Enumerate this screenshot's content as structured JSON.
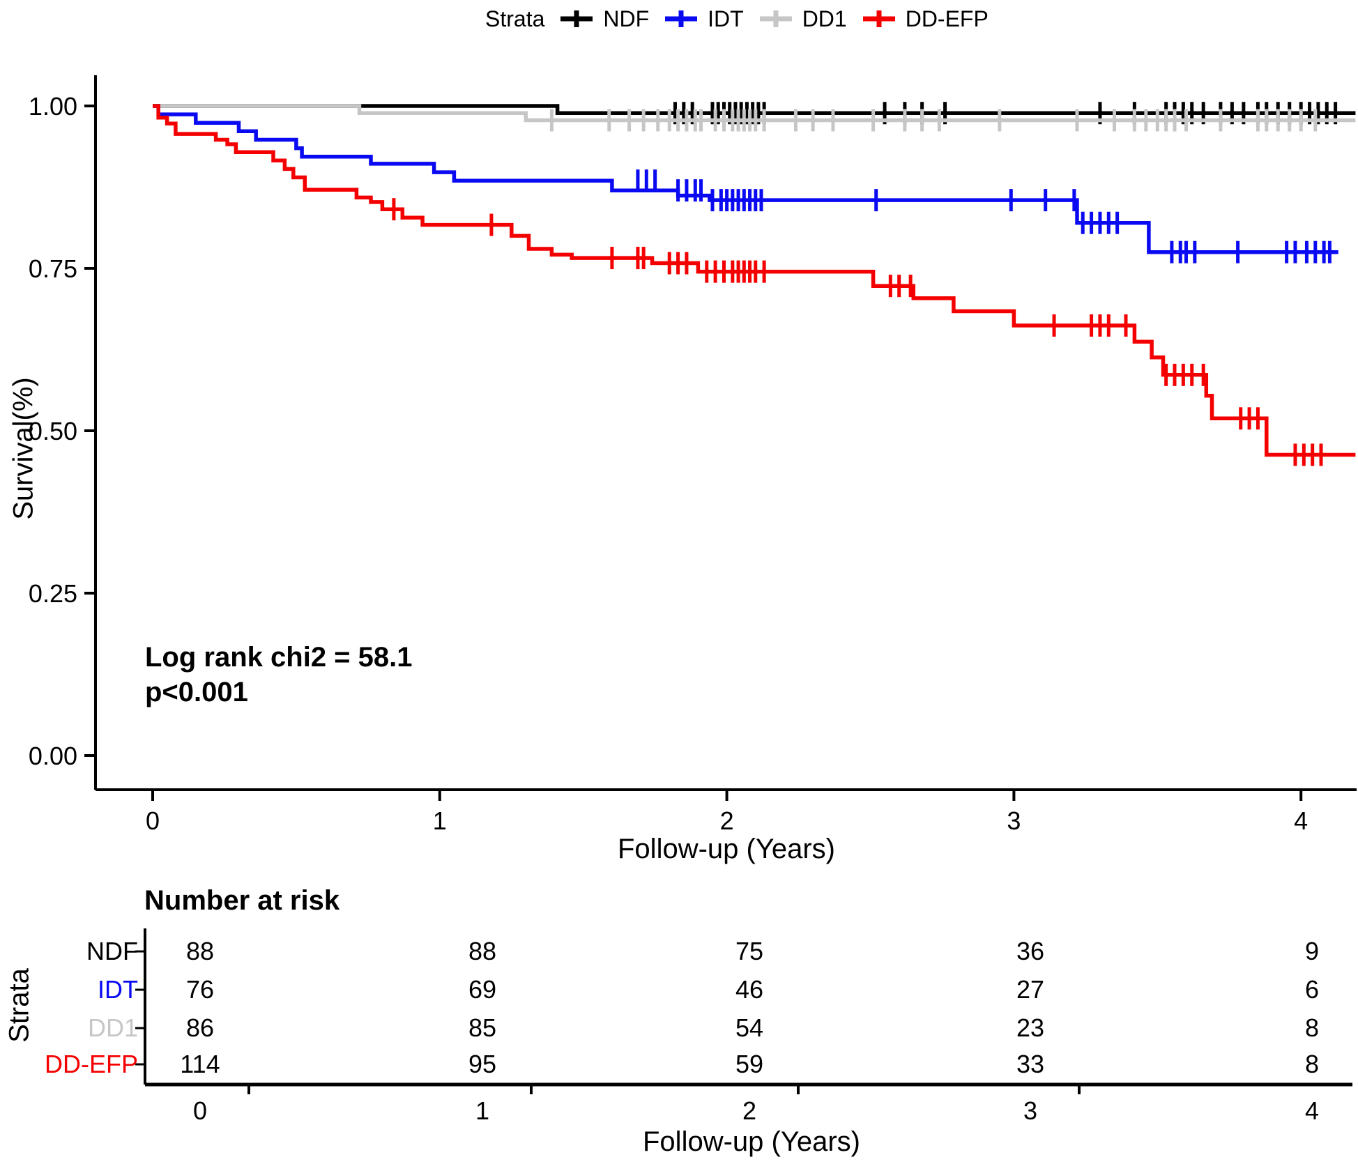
{
  "legend": {
    "title": "Strata",
    "items": [
      {
        "label": "NDF",
        "color": "#000000"
      },
      {
        "label": "IDT",
        "color": "#0a0af2"
      },
      {
        "label": "DD1",
        "color": "#c6c6c6"
      },
      {
        "label": "DD-EFP",
        "color": "#f40000"
      }
    ]
  },
  "axes": {
    "y_label": "Survival(%)",
    "x_label": "Follow-up (Years)",
    "y_ticks": [
      {
        "value": 1.0,
        "label": "1.00"
      },
      {
        "value": 0.75,
        "label": "0.75"
      },
      {
        "value": 0.5,
        "label": "0.50"
      },
      {
        "value": 0.25,
        "label": "0.25"
      },
      {
        "value": 0.0,
        "label": "0.00"
      }
    ],
    "x_ticks": [
      {
        "value": 0,
        "label": "0"
      },
      {
        "value": 1,
        "label": "1"
      },
      {
        "value": 2,
        "label": "2"
      },
      {
        "value": 3,
        "label": "3"
      },
      {
        "value": 4,
        "label": "4"
      }
    ]
  },
  "annotation": {
    "line1": "Log rank chi2 = 58.1",
    "line2": "p<0.001"
  },
  "risk_table": {
    "title": "Number at risk",
    "axis_label": "Strata",
    "x_label": "Follow-up (Years)",
    "x_ticks": [
      "0",
      "1",
      "2",
      "3",
      "4"
    ],
    "rows": [
      {
        "label": "NDF",
        "color": "#000000",
        "values": [
          "88",
          "88",
          "75",
          "36",
          "9"
        ]
      },
      {
        "label": "IDT",
        "color": "#0a0af2",
        "values": [
          "76",
          "69",
          "46",
          "27",
          "6"
        ]
      },
      {
        "label": "DD1",
        "color": "#c6c6c6",
        "values": [
          "86",
          "85",
          "54",
          "23",
          "8"
        ]
      },
      {
        "label": "DD-EFP",
        "color": "#f40000",
        "values": [
          "114",
          "95",
          "59",
          "33",
          "8"
        ]
      }
    ]
  },
  "chart_data": {
    "type": "line",
    "subtype": "kaplan-meier-step",
    "title": "",
    "xlabel": "Follow-up (Years)",
    "ylabel": "Survival(%)",
    "xlim": [
      -0.2,
      4.2
    ],
    "ylim": [
      -0.05,
      1.05
    ],
    "grid": false,
    "legend_position": "top",
    "annotation": "Log rank chi2 = 58.1; p<0.001",
    "series": [
      {
        "name": "NDF",
        "color": "#000000",
        "steps": [
          [
            0,
            1.0
          ],
          [
            1.41,
            0.989
          ],
          [
            4.19,
            0.989
          ]
        ],
        "censors": [
          [
            1.82,
            0.989
          ],
          [
            1.85,
            0.989
          ],
          [
            1.88,
            0.989
          ],
          [
            1.95,
            0.989
          ],
          [
            1.97,
            0.989
          ],
          [
            1.99,
            0.989
          ],
          [
            2.01,
            0.989
          ],
          [
            2.03,
            0.989
          ],
          [
            2.05,
            0.989
          ],
          [
            2.07,
            0.989
          ],
          [
            2.09,
            0.989
          ],
          [
            2.11,
            0.989
          ],
          [
            2.13,
            0.989
          ],
          [
            2.55,
            0.989
          ],
          [
            2.62,
            0.989
          ],
          [
            2.68,
            0.989
          ],
          [
            2.76,
            0.989
          ],
          [
            3.3,
            0.989
          ],
          [
            3.42,
            0.989
          ],
          [
            3.53,
            0.989
          ],
          [
            3.56,
            0.989
          ],
          [
            3.59,
            0.989
          ],
          [
            3.62,
            0.989
          ],
          [
            3.66,
            0.989
          ],
          [
            3.72,
            0.989
          ],
          [
            3.76,
            0.989
          ],
          [
            3.8,
            0.989
          ],
          [
            3.85,
            0.989
          ],
          [
            3.88,
            0.989
          ],
          [
            3.92,
            0.989
          ],
          [
            3.96,
            0.989
          ],
          [
            4.0,
            0.989
          ],
          [
            4.03,
            0.989
          ],
          [
            4.06,
            0.989
          ],
          [
            4.09,
            0.989
          ],
          [
            4.12,
            0.989
          ]
        ]
      },
      {
        "name": "DD1",
        "color": "#c6c6c6",
        "steps": [
          [
            0,
            1.0
          ],
          [
            0.72,
            0.989
          ],
          [
            1.3,
            0.978
          ],
          [
            4.19,
            0.978
          ]
        ],
        "censors": [
          [
            1.39,
            0.978
          ],
          [
            1.59,
            0.978
          ],
          [
            1.66,
            0.978
          ],
          [
            1.71,
            0.978
          ],
          [
            1.76,
            0.978
          ],
          [
            1.8,
            0.978
          ],
          [
            1.83,
            0.978
          ],
          [
            1.86,
            0.978
          ],
          [
            1.89,
            0.978
          ],
          [
            1.91,
            0.978
          ],
          [
            1.96,
            0.978
          ],
          [
            1.99,
            0.978
          ],
          [
            2.02,
            0.978
          ],
          [
            2.04,
            0.978
          ],
          [
            2.06,
            0.978
          ],
          [
            2.08,
            0.978
          ],
          [
            2.1,
            0.978
          ],
          [
            2.13,
            0.978
          ],
          [
            2.24,
            0.978
          ],
          [
            2.3,
            0.978
          ],
          [
            2.37,
            0.978
          ],
          [
            2.51,
            0.978
          ],
          [
            2.62,
            0.978
          ],
          [
            2.68,
            0.978
          ],
          [
            2.74,
            0.978
          ],
          [
            2.95,
            0.978
          ],
          [
            3.22,
            0.978
          ],
          [
            3.35,
            0.978
          ],
          [
            3.42,
            0.978
          ],
          [
            3.46,
            0.978
          ],
          [
            3.5,
            0.978
          ],
          [
            3.53,
            0.978
          ],
          [
            3.56,
            0.978
          ],
          [
            3.6,
            0.978
          ],
          [
            3.72,
            0.978
          ],
          [
            3.85,
            0.978
          ],
          [
            3.88,
            0.978
          ],
          [
            3.92,
            0.978
          ],
          [
            3.96,
            0.978
          ],
          [
            4.0,
            0.978
          ],
          [
            4.05,
            0.978
          ]
        ]
      },
      {
        "name": "IDT",
        "color": "#0a0af2",
        "steps": [
          [
            0,
            1.0
          ],
          [
            0.02,
            0.987
          ],
          [
            0.15,
            0.974
          ],
          [
            0.3,
            0.961
          ],
          [
            0.36,
            0.948
          ],
          [
            0.5,
            0.935
          ],
          [
            0.52,
            0.922
          ],
          [
            0.76,
            0.911
          ],
          [
            0.98,
            0.898
          ],
          [
            1.05,
            0.885
          ],
          [
            1.6,
            0.87
          ],
          [
            1.83,
            0.862
          ],
          [
            1.94,
            0.855
          ],
          [
            3.22,
            0.82
          ],
          [
            3.47,
            0.775
          ],
          [
            4.13,
            0.775
          ]
        ],
        "censors": [
          [
            1.69,
            0.885
          ],
          [
            1.72,
            0.885
          ],
          [
            1.75,
            0.885
          ],
          [
            1.83,
            0.87
          ],
          [
            1.86,
            0.87
          ],
          [
            1.89,
            0.87
          ],
          [
            1.91,
            0.87
          ],
          [
            1.95,
            0.855
          ],
          [
            1.98,
            0.855
          ],
          [
            2.0,
            0.855
          ],
          [
            2.02,
            0.855
          ],
          [
            2.04,
            0.855
          ],
          [
            2.06,
            0.855
          ],
          [
            2.08,
            0.855
          ],
          [
            2.1,
            0.855
          ],
          [
            2.12,
            0.855
          ],
          [
            2.52,
            0.855
          ],
          [
            2.99,
            0.855
          ],
          [
            3.11,
            0.855
          ],
          [
            3.21,
            0.855
          ],
          [
            3.24,
            0.82
          ],
          [
            3.27,
            0.82
          ],
          [
            3.3,
            0.82
          ],
          [
            3.33,
            0.82
          ],
          [
            3.36,
            0.82
          ],
          [
            3.55,
            0.775
          ],
          [
            3.58,
            0.775
          ],
          [
            3.6,
            0.775
          ],
          [
            3.63,
            0.775
          ],
          [
            3.78,
            0.775
          ],
          [
            3.95,
            0.775
          ],
          [
            3.98,
            0.775
          ],
          [
            4.02,
            0.775
          ],
          [
            4.05,
            0.775
          ],
          [
            4.08,
            0.775
          ],
          [
            4.1,
            0.775
          ]
        ]
      },
      {
        "name": "DD-EFP",
        "color": "#f40000",
        "steps": [
          [
            0,
            1.0
          ],
          [
            0.02,
            0.982
          ],
          [
            0.05,
            0.973
          ],
          [
            0.08,
            0.957
          ],
          [
            0.22,
            0.948
          ],
          [
            0.26,
            0.941
          ],
          [
            0.29,
            0.929
          ],
          [
            0.42,
            0.916
          ],
          [
            0.46,
            0.903
          ],
          [
            0.49,
            0.89
          ],
          [
            0.53,
            0.871
          ],
          [
            0.71,
            0.859
          ],
          [
            0.76,
            0.852
          ],
          [
            0.8,
            0.841
          ],
          [
            0.87,
            0.828
          ],
          [
            0.94,
            0.817
          ],
          [
            1.25,
            0.8
          ],
          [
            1.31,
            0.78
          ],
          [
            1.39,
            0.771
          ],
          [
            1.46,
            0.766
          ],
          [
            1.74,
            0.758
          ],
          [
            1.9,
            0.745
          ],
          [
            2.51,
            0.723
          ],
          [
            2.65,
            0.704
          ],
          [
            2.79,
            0.684
          ],
          [
            3.0,
            0.662
          ],
          [
            3.42,
            0.637
          ],
          [
            3.48,
            0.613
          ],
          [
            3.52,
            0.586
          ],
          [
            3.67,
            0.554
          ],
          [
            3.69,
            0.519
          ],
          [
            3.88,
            0.463
          ],
          [
            4.19,
            0.463
          ]
        ],
        "censors": [
          [
            0.84,
            0.841
          ],
          [
            1.18,
            0.817
          ],
          [
            1.6,
            0.766
          ],
          [
            1.69,
            0.766
          ],
          [
            1.71,
            0.766
          ],
          [
            1.8,
            0.758
          ],
          [
            1.83,
            0.758
          ],
          [
            1.86,
            0.758
          ],
          [
            1.93,
            0.745
          ],
          [
            1.96,
            0.745
          ],
          [
            1.99,
            0.745
          ],
          [
            2.02,
            0.745
          ],
          [
            2.04,
            0.745
          ],
          [
            2.06,
            0.745
          ],
          [
            2.08,
            0.745
          ],
          [
            2.1,
            0.745
          ],
          [
            2.13,
            0.745
          ],
          [
            2.57,
            0.723
          ],
          [
            2.6,
            0.723
          ],
          [
            2.64,
            0.723
          ],
          [
            3.14,
            0.662
          ],
          [
            3.27,
            0.662
          ],
          [
            3.3,
            0.662
          ],
          [
            3.33,
            0.662
          ],
          [
            3.39,
            0.662
          ],
          [
            3.53,
            0.586
          ],
          [
            3.56,
            0.586
          ],
          [
            3.59,
            0.586
          ],
          [
            3.62,
            0.586
          ],
          [
            3.66,
            0.586
          ],
          [
            3.79,
            0.519
          ],
          [
            3.82,
            0.519
          ],
          [
            3.85,
            0.519
          ],
          [
            3.98,
            0.463
          ],
          [
            4.01,
            0.463
          ],
          [
            4.04,
            0.463
          ],
          [
            4.07,
            0.463
          ]
        ]
      }
    ],
    "number_at_risk": {
      "times": [
        0,
        1,
        2,
        3,
        4
      ],
      "NDF": [
        88,
        88,
        75,
        36,
        9
      ],
      "IDT": [
        76,
        69,
        46,
        27,
        6
      ],
      "DD1": [
        86,
        85,
        54,
        23,
        8
      ],
      "DD-EFP": [
        114,
        95,
        59,
        33,
        8
      ]
    }
  }
}
